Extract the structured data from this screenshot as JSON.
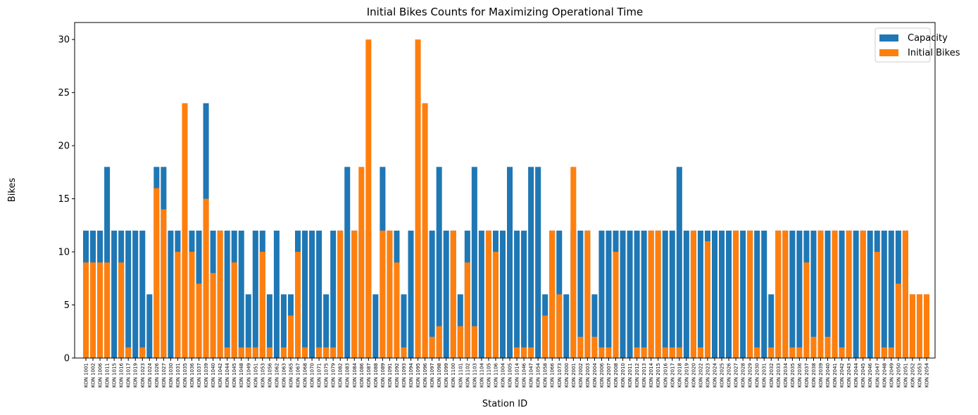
{
  "chart_data": {
    "type": "bar",
    "title": "Initial Bikes Counts for Maximizing Operational Time",
    "x_label": "Station ID",
    "y_label": "Bikes",
    "categories": [
      "KON 1001",
      "KON 1002",
      "KON 1006",
      "KON 1011",
      "KON 1015",
      "KON 1016",
      "KON 1017",
      "KON 1019",
      "KON 1023",
      "KON 1024",
      "KON 1026",
      "KON 1027",
      "KON 1030",
      "KON 1031",
      "KON 1035",
      "KON 1036",
      "KON 1037",
      "KON 1039",
      "KON 1040",
      "KON 1042",
      "KON 1044",
      "KON 1045",
      "KON 1048",
      "KON 1049",
      "KON 1051",
      "KON 1053",
      "KON 1056",
      "KON 1062",
      "KON 1063",
      "KON 1065",
      "KON 1067",
      "KON 1068",
      "KON 1070",
      "KON 1071",
      "KON 1075",
      "KON 1079",
      "KON 1082",
      "KON 1083",
      "KON 1084",
      "KON 1086",
      "KON 1087",
      "KON 1088",
      "KON 1089",
      "KON 1091",
      "KON 1092",
      "KON 1093",
      "KON 1094",
      "KON 1095",
      "KON 1096",
      "KON 1097",
      "KON 1098",
      "KON 1099",
      "KON 1100",
      "KON 1101",
      "KON 1102",
      "KON 1103",
      "KON 1104",
      "KON 1105",
      "KON 1106",
      "KON 1004",
      "KON 1005",
      "KON 1014",
      "KON 1046",
      "KON 1047",
      "KON 1054",
      "KON 1058",
      "KON 1066",
      "KON 1073",
      "KON 2000",
      "KON 2001",
      "KON 2002",
      "KON 2003",
      "KON 2004",
      "KON 2006",
      "KON 2007",
      "KON 2008",
      "KON 2010",
      "KON 2011",
      "KON 2012",
      "KON 2013",
      "KON 2014",
      "KON 2015",
      "KON 2016",
      "KON 2017",
      "KON 2018",
      "KON 2019",
      "KON 2020",
      "KON 2022",
      "KON 2023",
      "KON 2024",
      "KON 2025",
      "KON 2026",
      "KON 2027",
      "KON 2028",
      "KON 2029",
      "KON 2030",
      "KON 2031",
      "KON 2032",
      "KON 2033",
      "KON 2034",
      "KON 2035",
      "KON 2036",
      "KON 2037",
      "KON 2038",
      "KON 2039",
      "KON 2040",
      "KON 2041",
      "KON 2042",
      "KON 2043",
      "KON 2044",
      "KON 2045",
      "KON 2046",
      "KON 2047",
      "KON 2048",
      "KON 2049",
      "KON 2050",
      "KON 2051",
      "KON 2052",
      "KON 2053",
      "KON 2054"
    ],
    "series": [
      {
        "name": "Capacity",
        "color": "#1f77b4",
        "values": [
          12,
          12,
          12,
          18,
          12,
          12,
          12,
          12,
          12,
          6,
          18,
          18,
          12,
          12,
          12,
          12,
          12,
          24,
          12,
          12,
          12,
          12,
          12,
          6,
          12,
          12,
          6,
          12,
          6,
          6,
          12,
          12,
          12,
          12,
          6,
          12,
          12,
          18,
          12,
          12,
          12,
          6,
          18,
          12,
          12,
          6,
          12,
          12,
          12,
          12,
          18,
          12,
          12,
          6,
          12,
          18,
          12,
          12,
          12,
          12,
          18,
          12,
          12,
          18,
          18,
          6,
          12,
          12,
          6,
          12,
          12,
          12,
          6,
          12,
          12,
          12,
          12,
          12,
          12,
          12,
          12,
          12,
          12,
          12,
          18,
          12,
          12,
          12,
          12,
          12,
          12,
          12,
          12,
          12,
          12,
          12,
          12,
          6,
          12,
          12,
          12,
          12,
          12,
          12,
          12,
          12,
          12,
          12,
          12,
          12,
          12,
          12,
          12,
          12,
          12,
          12,
          12,
          6,
          6,
          6
        ]
      },
      {
        "name": "Initial Bikes",
        "color": "#ff7f0e",
        "values": [
          9,
          9,
          9,
          9,
          0,
          9,
          1,
          0,
          1,
          0,
          16,
          14,
          0,
          10,
          24,
          10,
          7,
          15,
          8,
          12,
          1,
          9,
          1,
          1,
          1,
          10,
          1,
          0,
          1,
          4,
          10,
          1,
          0,
          1,
          1,
          1,
          12,
          0,
          12,
          18,
          30,
          0,
          12,
          12,
          9,
          1,
          0,
          30,
          24,
          2,
          3,
          0,
          12,
          3,
          9,
          3,
          0,
          12,
          10,
          0,
          0,
          1,
          1,
          1,
          0,
          4,
          12,
          6,
          0,
          18,
          2,
          12,
          2,
          1,
          1,
          10,
          0,
          0,
          1,
          1,
          12,
          12,
          1,
          1,
          1,
          0,
          12,
          1,
          11,
          0,
          0,
          0,
          12,
          0,
          12,
          1,
          0,
          1,
          12,
          12,
          1,
          1,
          9,
          2,
          12,
          2,
          12,
          1,
          12,
          0,
          12,
          0,
          10,
          1,
          1,
          7,
          12,
          6,
          6,
          6
        ]
      }
    ],
    "ylim": [
      0,
      31.6
    ],
    "yticks": [
      0,
      5,
      10,
      15,
      20,
      25,
      30
    ],
    "legend": "upper right"
  }
}
